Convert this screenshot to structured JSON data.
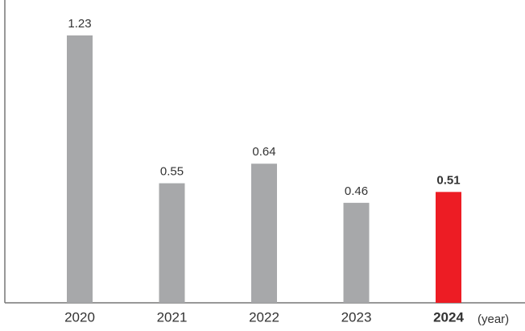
{
  "chart_data": {
    "type": "bar",
    "categories": [
      "2020",
      "2021",
      "2022",
      "2023",
      "2024"
    ],
    "values": [
      1.23,
      0.55,
      0.64,
      0.46,
      0.51
    ],
    "colors": [
      "#a7a8aa",
      "#a7a8aa",
      "#a7a8aa",
      "#a7a8aa",
      "#ed1c24"
    ],
    "x_label": "(year)"
  }
}
